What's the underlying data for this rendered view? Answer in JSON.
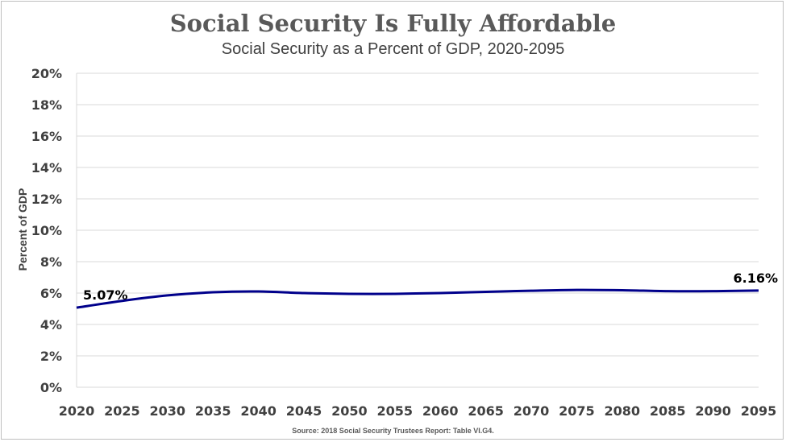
{
  "chart_data": {
    "type": "line",
    "title": "Social Security Is Fully Affordable",
    "subtitle": "Social Security as a Percent of GDP, 2020-2095",
    "ylabel": "Percent of GDP",
    "xlabel": "",
    "x": [
      2020,
      2025,
      2030,
      2035,
      2040,
      2045,
      2050,
      2055,
      2060,
      2065,
      2070,
      2075,
      2080,
      2085,
      2090,
      2095
    ],
    "x_tick_labels": [
      "2020",
      "2025",
      "2030",
      "2035",
      "2040",
      "2045",
      "2050",
      "2055",
      "2060",
      "2065",
      "2070",
      "2075",
      "2080",
      "2085",
      "2090",
      "2095"
    ],
    "series": [
      {
        "name": "",
        "color": "#00008B",
        "values": [
          5.07,
          5.5,
          5.85,
          6.05,
          6.1,
          6.0,
          5.95,
          5.95,
          6.0,
          6.08,
          6.15,
          6.2,
          6.18,
          6.12,
          6.12,
          6.16
        ]
      }
    ],
    "ylim": [
      0,
      20
    ],
    "y_ticks": [
      0,
      2,
      4,
      6,
      8,
      10,
      12,
      14,
      16,
      18,
      20
    ],
    "y_tick_labels": [
      "0%",
      "2%",
      "4%",
      "6%",
      "8%",
      "10%",
      "12%",
      "14%",
      "16%",
      "18%",
      "20%"
    ],
    "data_labels": [
      {
        "text": "5.07%",
        "x": 2020,
        "y": 5.07
      },
      {
        "text": "6.16%",
        "x": 2095,
        "y": 6.16
      }
    ],
    "grid": true,
    "gridline_color": "#d9d9d9",
    "source": "Source: 2018 Social Security Trustees Report: Table VI.G4."
  }
}
